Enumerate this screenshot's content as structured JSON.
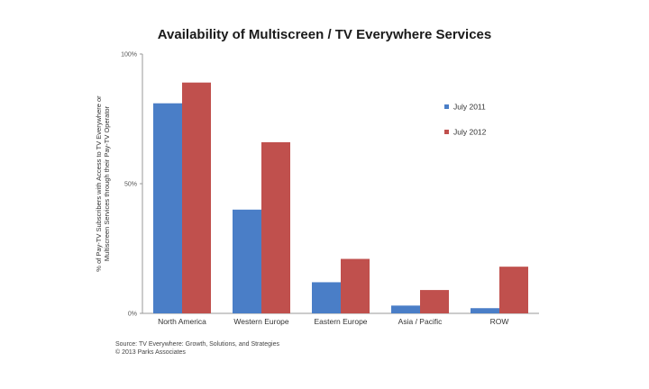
{
  "chart_data": {
    "type": "bar",
    "title": "Availability of Multiscreen / TV Everywhere Services",
    "ylabel_lines": [
      "% of Pay-TV Subscribers with Access to TV Everywhere or",
      "Multiscreen Services through their Pay-TV Operator"
    ],
    "categories": [
      "North America",
      "Western Europe",
      "Eastern Europe",
      "Asia / Pacific",
      "ROW"
    ],
    "series": [
      {
        "name": "July 2011",
        "color": "#4a7ec7",
        "values": [
          81,
          40,
          12,
          3,
          2
        ]
      },
      {
        "name": "July 2012",
        "color": "#c0504d",
        "values": [
          89,
          66,
          21,
          9,
          18
        ]
      }
    ],
    "ylim": [
      0,
      100
    ],
    "yticks": [
      {
        "value": 0,
        "label": "0%"
      },
      {
        "value": 50,
        "label": "50%"
      },
      {
        "value": 100,
        "label": "100%"
      }
    ],
    "legend_position": "right",
    "grid": false
  },
  "source": {
    "line1": "Source: TV Everywhere: Growth, Solutions, and Strategies",
    "line2": "© 2013 Parks Associates"
  }
}
